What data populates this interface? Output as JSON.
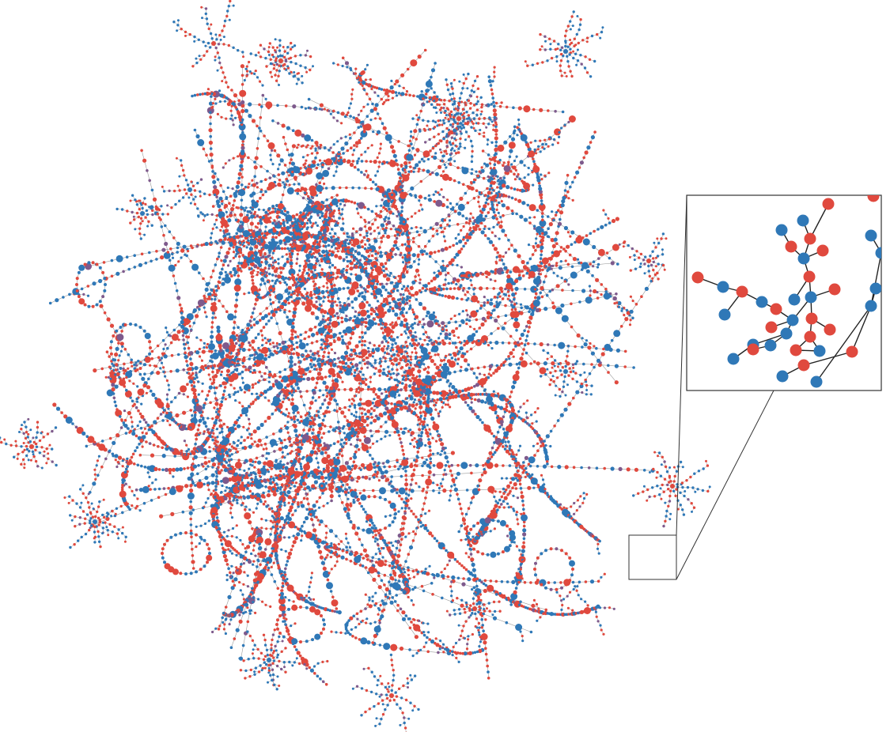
{
  "colors": {
    "background": "#ffffff",
    "node_red": "#e0493e",
    "node_blue": "#2f78b7",
    "node_purple": "#7e5a8c",
    "edge": "#9a9a9a",
    "edge_inset": "#222222",
    "frame": "#333333"
  },
  "figure": {
    "type": "network-graph",
    "node_classes": [
      "red",
      "blue"
    ],
    "has_zoom_inset": true
  }
}
